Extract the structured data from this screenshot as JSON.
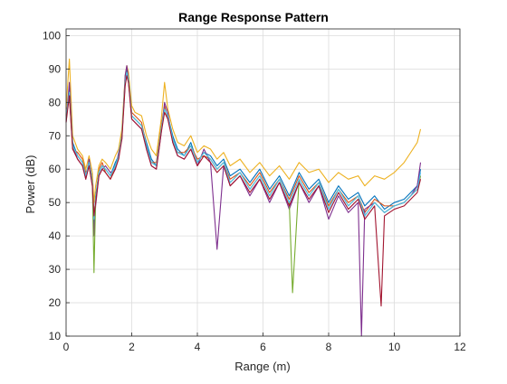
{
  "chart_data": {
    "type": "line",
    "title": "Range Response Pattern",
    "xlabel": "Range (m)",
    "ylabel": "Power (dB)",
    "xlim": [
      0,
      12
    ],
    "ylim": [
      10,
      102
    ],
    "xticks": [
      0,
      2,
      4,
      6,
      8,
      10,
      12
    ],
    "yticks": [
      10,
      20,
      30,
      40,
      50,
      60,
      70,
      80,
      90,
      100
    ],
    "grid": true,
    "legend": "none",
    "series": [
      {
        "color": "#0072BD",
        "x": [
          0,
          0.1,
          0.2,
          0.35,
          0.5,
          0.6,
          0.7,
          0.8,
          0.85,
          0.9,
          1.0,
          1.1,
          1.2,
          1.35,
          1.5,
          1.6,
          1.7,
          1.8,
          1.85,
          1.9,
          2.0,
          2.1,
          2.3,
          2.45,
          2.6,
          2.75,
          2.9,
          3.0,
          3.1,
          3.25,
          3.4,
          3.6,
          3.8,
          4.0,
          4.2,
          4.4,
          4.6,
          4.8,
          5.0,
          5.3,
          5.6,
          5.9,
          6.2,
          6.5,
          6.8,
          7.1,
          7.4,
          7.7,
          8.0,
          8.3,
          8.6,
          8.9,
          9.1,
          9.4,
          9.7,
          10.0,
          10.3,
          10.5,
          10.7,
          10.8
        ],
        "y": [
          75,
          84,
          68,
          64,
          62,
          58,
          62,
          57,
          43,
          52,
          59,
          61,
          60,
          58,
          62,
          64,
          70,
          87,
          90,
          88,
          76,
          75,
          73,
          68,
          63,
          61,
          72,
          78,
          76,
          70,
          66,
          64,
          68,
          62,
          65,
          64,
          61,
          63,
          58,
          60,
          56,
          60,
          54,
          58,
          52,
          59,
          54,
          57,
          50,
          55,
          51,
          53,
          49,
          52,
          48,
          50,
          51,
          53,
          55,
          60
        ]
      },
      {
        "color": "#D95319",
        "x": [
          0,
          0.1,
          0.2,
          0.35,
          0.5,
          0.6,
          0.7,
          0.8,
          0.85,
          0.9,
          1.0,
          1.1,
          1.2,
          1.35,
          1.5,
          1.6,
          1.7,
          1.8,
          1.85,
          1.9,
          2.0,
          2.1,
          2.3,
          2.45,
          2.6,
          2.75,
          2.9,
          3.0,
          3.1,
          3.25,
          3.4,
          3.6,
          3.8,
          4.0,
          4.2,
          4.4,
          4.6,
          4.8,
          5.0,
          5.3,
          5.6,
          5.9,
          6.2,
          6.5,
          6.8,
          7.1,
          7.4,
          7.7,
          8.0,
          8.3,
          8.6,
          8.9,
          9.1,
          9.4,
          9.7,
          10.0,
          10.3,
          10.5,
          10.7,
          10.8
        ],
        "y": [
          76,
          82,
          66,
          65,
          63,
          59,
          61,
          55,
          47,
          50,
          60,
          62,
          59,
          57,
          61,
          63,
          71,
          86,
          89,
          86,
          77,
          76,
          74,
          67,
          62,
          62,
          73,
          79,
          75,
          69,
          65,
          65,
          67,
          63,
          64,
          63,
          60,
          62,
          57,
          59,
          55,
          59,
          53,
          57,
          51,
          58,
          53,
          56,
          49,
          54,
          50,
          52,
          47,
          51,
          49,
          49,
          50,
          52,
          54,
          58
        ]
      },
      {
        "color": "#EDB120",
        "x": [
          0,
          0.1,
          0.2,
          0.35,
          0.5,
          0.6,
          0.7,
          0.8,
          0.85,
          0.9,
          1.0,
          1.1,
          1.2,
          1.35,
          1.5,
          1.6,
          1.7,
          1.8,
          1.85,
          1.9,
          2.0,
          2.1,
          2.3,
          2.45,
          2.6,
          2.75,
          2.9,
          3.0,
          3.1,
          3.25,
          3.4,
          3.6,
          3.8,
          4.0,
          4.2,
          4.4,
          4.6,
          4.8,
          5.0,
          5.3,
          5.6,
          5.9,
          6.2,
          6.5,
          6.8,
          7.1,
          7.4,
          7.7,
          8.0,
          8.3,
          8.6,
          8.9,
          9.1,
          9.4,
          9.7,
          10.0,
          10.3,
          10.5,
          10.7,
          10.8
        ],
        "y": [
          78,
          93,
          70,
          66,
          64,
          60,
          64,
          59,
          50,
          55,
          61,
          63,
          62,
          60,
          64,
          66,
          72,
          88,
          91,
          89,
          79,
          77,
          76,
          70,
          66,
          64,
          75,
          86,
          78,
          72,
          68,
          67,
          70,
          65,
          67,
          66,
          63,
          65,
          61,
          63,
          59,
          62,
          58,
          61,
          57,
          62,
          59,
          60,
          56,
          59,
          57,
          58,
          55,
          58,
          57,
          59,
          62,
          65,
          68,
          72
        ]
      },
      {
        "color": "#7E2F8E",
        "x": [
          0,
          0.1,
          0.2,
          0.35,
          0.5,
          0.6,
          0.7,
          0.8,
          0.85,
          0.9,
          1.0,
          1.1,
          1.2,
          1.35,
          1.5,
          1.6,
          1.7,
          1.8,
          1.85,
          1.9,
          2.0,
          2.1,
          2.3,
          2.45,
          2.6,
          2.75,
          2.9,
          3.0,
          3.1,
          3.25,
          3.4,
          3.6,
          3.8,
          4.0,
          4.2,
          4.4,
          4.6,
          4.8,
          5.0,
          5.3,
          5.6,
          5.9,
          6.2,
          6.5,
          6.8,
          7.1,
          7.4,
          7.7,
          8.0,
          8.3,
          8.6,
          8.9,
          9.0,
          9.1,
          9.4,
          9.7,
          10.0,
          10.3,
          10.5,
          10.7,
          10.8
        ],
        "y": [
          74,
          86,
          67,
          63,
          61,
          57,
          63,
          56,
          40,
          49,
          58,
          60,
          61,
          59,
          60,
          65,
          69,
          88,
          91,
          87,
          75,
          74,
          72,
          66,
          61,
          60,
          71,
          80,
          77,
          68,
          64,
          63,
          66,
          61,
          66,
          62,
          36,
          61,
          55,
          58,
          52,
          57,
          50,
          56,
          48,
          56,
          50,
          55,
          45,
          52,
          47,
          50,
          10,
          48,
          50,
          47,
          49,
          50,
          52,
          55,
          62
        ]
      },
      {
        "color": "#77AC30",
        "x": [
          0,
          0.1,
          0.2,
          0.35,
          0.5,
          0.6,
          0.7,
          0.8,
          0.85,
          0.9,
          1.0,
          1.1,
          1.2,
          1.35,
          1.5,
          1.6,
          1.7,
          1.8,
          1.85,
          1.9,
          2.0,
          2.1,
          2.3,
          2.45,
          2.6,
          2.75,
          2.9,
          3.0,
          3.1,
          3.25,
          3.4,
          3.6,
          3.8,
          4.0,
          4.2,
          4.4,
          4.6,
          4.8,
          5.0,
          5.3,
          5.6,
          5.9,
          6.2,
          6.5,
          6.8,
          6.9,
          7.1,
          7.4,
          7.7,
          8.0,
          8.3,
          8.6,
          8.9,
          9.1,
          9.4,
          9.7,
          10.0,
          10.3,
          10.5,
          10.7,
          10.8
        ],
        "y": [
          75,
          83,
          67,
          64,
          62,
          58,
          62,
          56,
          29,
          51,
          59,
          61,
          60,
          58,
          61,
          64,
          70,
          86,
          89,
          87,
          76,
          75,
          73,
          67,
          62,
          61,
          72,
          78,
          76,
          69,
          65,
          64,
          67,
          62,
          65,
          63,
          60,
          62,
          56,
          59,
          54,
          58,
          52,
          57,
          50,
          23,
          57,
          52,
          56,
          48,
          54,
          49,
          52,
          46,
          50,
          47,
          49,
          50,
          52,
          54,
          58
        ]
      },
      {
        "color": "#4DBEEE",
        "x": [
          0,
          0.1,
          0.2,
          0.35,
          0.5,
          0.6,
          0.7,
          0.8,
          0.85,
          0.9,
          1.0,
          1.1,
          1.2,
          1.35,
          1.5,
          1.6,
          1.7,
          1.8,
          1.85,
          1.9,
          2.0,
          2.1,
          2.3,
          2.45,
          2.6,
          2.75,
          2.9,
          3.0,
          3.1,
          3.25,
          3.4,
          3.6,
          3.8,
          4.0,
          4.2,
          4.4,
          4.6,
          4.8,
          5.0,
          5.3,
          5.6,
          5.9,
          6.2,
          6.5,
          6.8,
          7.1,
          7.4,
          7.7,
          8.0,
          8.3,
          8.6,
          8.9,
          9.1,
          9.4,
          9.7,
          10.0,
          10.3,
          10.5,
          10.7,
          10.8
        ],
        "y": [
          75,
          83,
          67,
          64,
          62,
          58,
          62,
          56,
          45,
          51,
          59,
          61,
          60,
          58,
          61,
          64,
          70,
          86,
          89,
          87,
          76,
          75,
          73,
          67,
          62,
          61,
          72,
          78,
          76,
          69,
          65,
          64,
          67,
          62,
          65,
          63,
          60,
          62,
          56,
          59,
          54,
          58,
          52,
          57,
          50,
          57,
          52,
          56,
          48,
          54,
          49,
          52,
          46,
          50,
          47,
          49,
          50,
          52,
          54,
          59
        ]
      },
      {
        "color": "#A2142F",
        "x": [
          0,
          0.1,
          0.2,
          0.35,
          0.5,
          0.6,
          0.7,
          0.8,
          0.85,
          0.9,
          1.0,
          1.1,
          1.2,
          1.35,
          1.5,
          1.6,
          1.7,
          1.8,
          1.85,
          1.9,
          2.0,
          2.1,
          2.3,
          2.45,
          2.6,
          2.75,
          2.9,
          3.0,
          3.1,
          3.25,
          3.4,
          3.6,
          3.8,
          4.0,
          4.2,
          4.4,
          4.6,
          4.8,
          5.0,
          5.3,
          5.6,
          5.9,
          6.2,
          6.5,
          6.8,
          7.1,
          7.4,
          7.7,
          8.0,
          8.3,
          8.6,
          8.9,
          9.1,
          9.4,
          9.6,
          9.7,
          10.0,
          10.3,
          10.5,
          10.7,
          10.8
        ],
        "y": [
          74,
          82,
          66,
          63,
          61,
          57,
          61,
          55,
          46,
          50,
          58,
          60,
          59,
          57,
          60,
          63,
          69,
          85,
          88,
          86,
          75,
          74,
          72,
          66,
          61,
          60,
          71,
          77,
          75,
          68,
          64,
          63,
          66,
          61,
          64,
          62,
          59,
          61,
          55,
          58,
          53,
          57,
          51,
          56,
          49,
          56,
          51,
          55,
          47,
          53,
          48,
          51,
          45,
          49,
          19,
          46,
          48,
          49,
          51,
          53,
          57
        ]
      }
    ]
  }
}
